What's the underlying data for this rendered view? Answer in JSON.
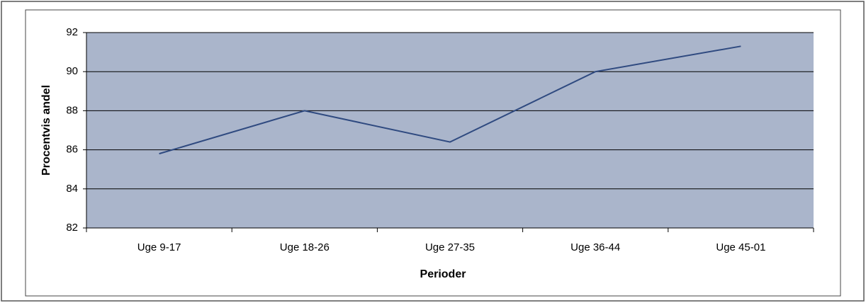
{
  "chart_data": {
    "type": "line",
    "categories": [
      "Uge 9-17",
      "Uge 18-26",
      "Uge 27-35",
      "Uge 36-44",
      "Uge 45-01"
    ],
    "series": [
      {
        "name": "Procentvis andel",
        "color": "#2f4a80",
        "values": [
          85.8,
          88.0,
          86.4,
          90.0,
          91.3
        ]
      }
    ],
    "x_label": "Perioder",
    "y_label": "Procentvis andel",
    "ylim": [
      82,
      92
    ],
    "yticks": [
      82,
      84,
      86,
      88,
      90,
      92
    ],
    "grid": true,
    "plot_background": "#aab5cb"
  }
}
